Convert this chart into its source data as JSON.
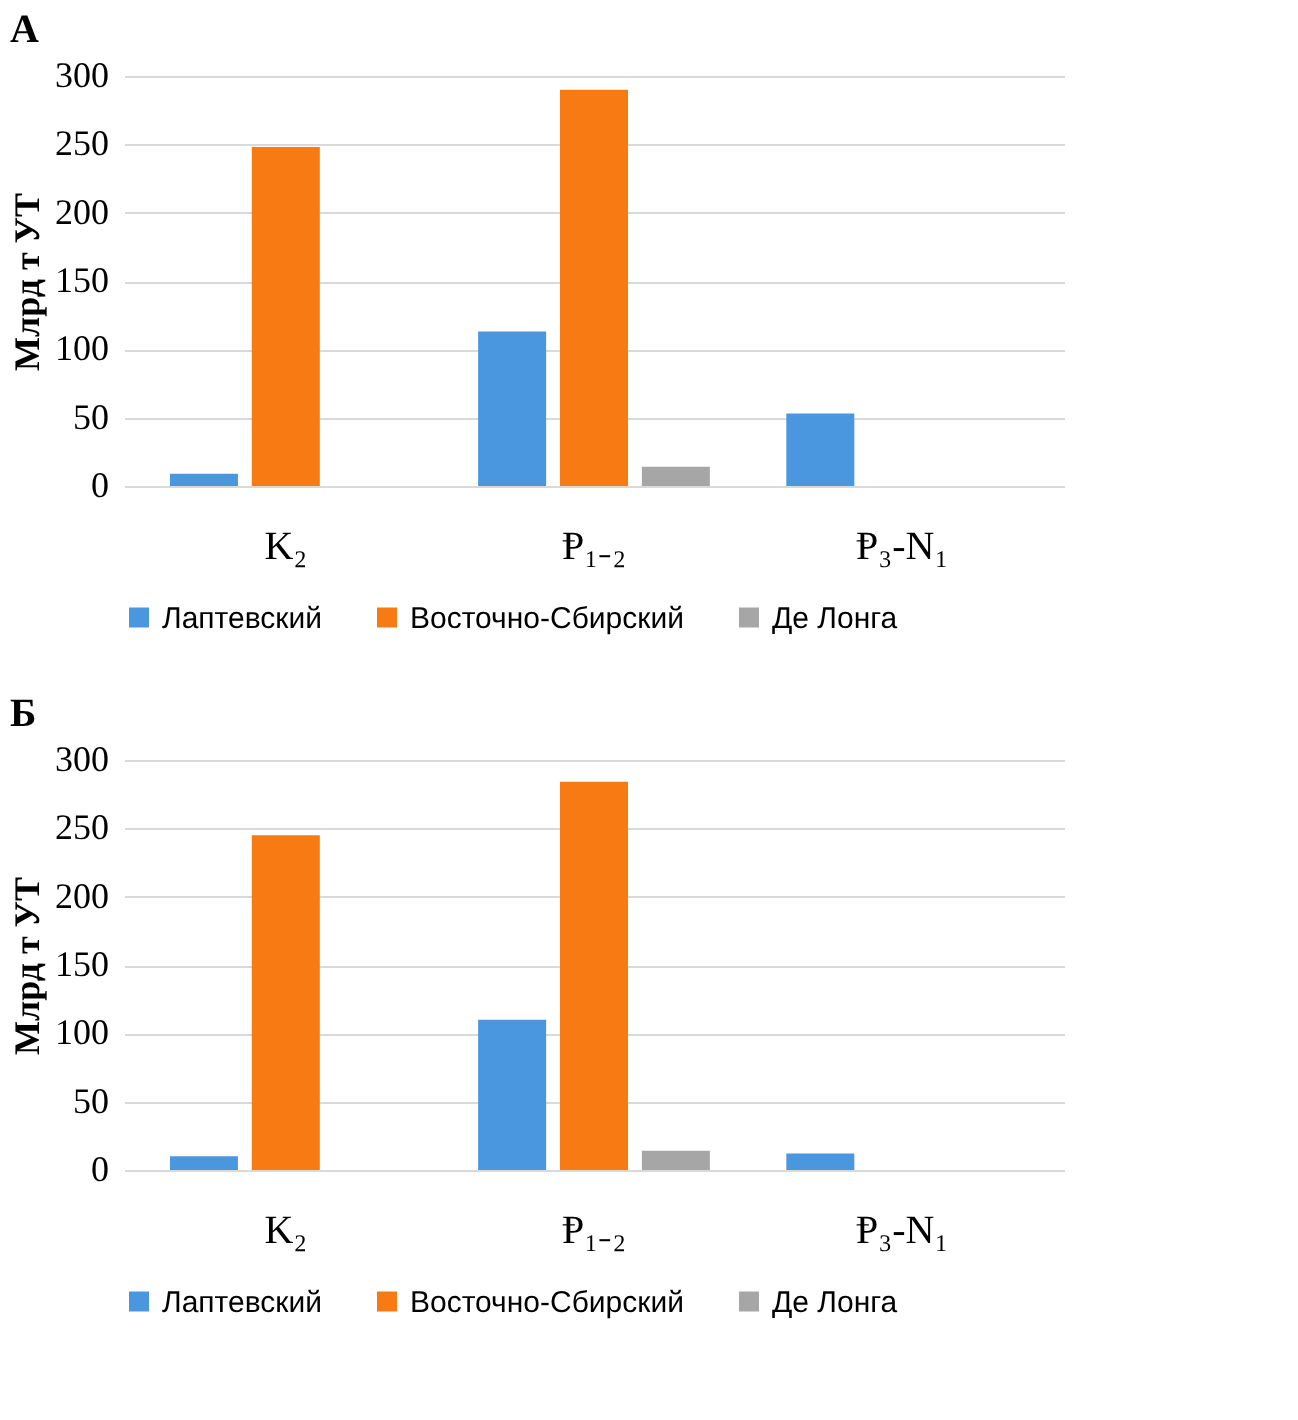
{
  "chart_data": [
    {
      "type": "bar",
      "title": "А",
      "ylabel": "Млрд т УТ",
      "categories": [
        "K₂",
        "Ᵽ₁₋₂",
        "Ᵽ₃-N₁"
      ],
      "series": [
        {
          "name": "Лаптевский",
          "color": "#4a97e0",
          "values": [
            9,
            113,
            53
          ]
        },
        {
          "name": "Восточно-Сбирский",
          "color": "#f77a12",
          "values": [
            248,
            290,
            0
          ]
        },
        {
          "name": "Де Лонга",
          "color": "#a6a6a6",
          "values": [
            0,
            14,
            0
          ]
        }
      ],
      "ylim": [
        0,
        300
      ],
      "yticks": [
        0,
        50,
        100,
        150,
        200,
        250,
        300
      ],
      "grid": "y",
      "legend": "bottom"
    },
    {
      "type": "bar",
      "title": "Б",
      "ylabel": "Млрд т УТ",
      "categories": [
        "K₂",
        "Ᵽ₁₋₂",
        "Ᵽ₃-N₁"
      ],
      "series": [
        {
          "name": "Лаптевский",
          "color": "#4a97e0",
          "values": [
            10,
            110,
            12
          ]
        },
        {
          "name": "Восточно-Сбирский",
          "color": "#f77a12",
          "values": [
            245,
            284,
            0
          ]
        },
        {
          "name": "Де Лонга",
          "color": "#a6a6a6",
          "values": [
            0,
            14,
            0
          ]
        }
      ],
      "ylim": [
        0,
        300
      ],
      "yticks": [
        0,
        50,
        100,
        150,
        200,
        250,
        300
      ],
      "grid": "y",
      "legend": "bottom"
    }
  ]
}
